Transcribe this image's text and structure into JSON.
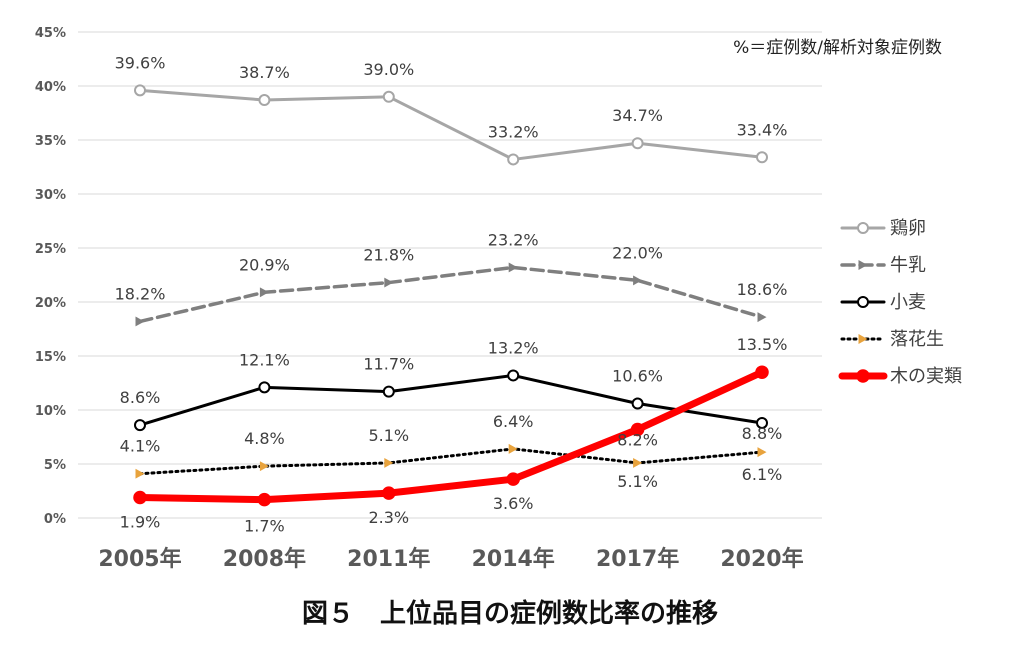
{
  "chart_data": {
    "type": "line",
    "title": "",
    "xlabel": "",
    "ylabel": "",
    "categories": [
      "2005年",
      "2008年",
      "2011年",
      "2014年",
      "2017年",
      "2020年"
    ],
    "ylim": [
      0,
      0.45
    ],
    "yticks": [
      "0%",
      "5%",
      "10%",
      "15%",
      "20%",
      "25%",
      "30%",
      "35%",
      "40%",
      "45%"
    ],
    "grid": true,
    "legend_position": "right",
    "note": "%＝症例数/解析対象症例数",
    "caption": "図５　上位品目の症例数比率の推移",
    "series": [
      {
        "name": "鶏卵",
        "values": [
          0.396,
          0.387,
          0.39,
          0.332,
          0.347,
          0.334
        ],
        "labels": [
          "39.6%",
          "38.7%",
          "39.0%",
          "33.2%",
          "34.7%",
          "33.4%"
        ],
        "color": "#a6a6a6",
        "style": "solid",
        "marker": "circle"
      },
      {
        "name": "牛乳",
        "values": [
          0.182,
          0.209,
          0.218,
          0.232,
          0.22,
          0.186
        ],
        "labels": [
          "18.2%",
          "20.9%",
          "21.8%",
          "23.2%",
          "22.0%",
          "18.6%"
        ],
        "color": "#7f7f7f",
        "style": "dashed",
        "marker": "arrow"
      },
      {
        "name": "小麦",
        "values": [
          0.086,
          0.121,
          0.117,
          0.132,
          0.106,
          0.088
        ],
        "labels": [
          "8.6%",
          "12.1%",
          "11.7%",
          "13.2%",
          "10.6%",
          "8.8%"
        ],
        "color": "#000000",
        "style": "solid",
        "marker": "circle"
      },
      {
        "name": "落花生",
        "values": [
          0.041,
          0.048,
          0.051,
          0.064,
          0.051,
          0.061
        ],
        "labels": [
          "4.1%",
          "4.8%",
          "5.1%",
          "6.4%",
          "5.1%",
          "6.1%"
        ],
        "color": "#000000",
        "marker_color": "#e8a33d",
        "style": "dotted",
        "marker": "arrow"
      },
      {
        "name": "木の実類",
        "values": [
          0.019,
          0.017,
          0.023,
          0.036,
          0.082,
          0.135
        ],
        "labels": [
          "1.9%",
          "1.7%",
          "2.3%",
          "3.6%",
          "8.2%",
          "13.5%"
        ],
        "color": "#ff0000",
        "style": "thick",
        "marker": "circle"
      }
    ]
  }
}
